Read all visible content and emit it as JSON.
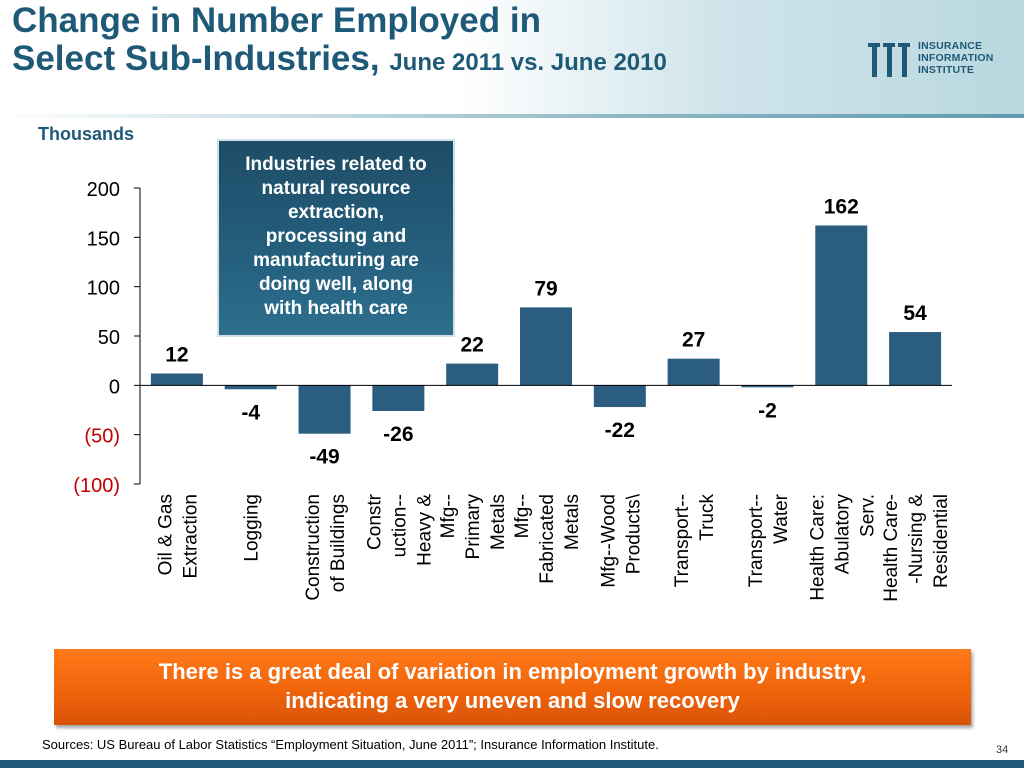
{
  "header": {
    "title_line1": "Change in Number Employed in",
    "title_line2": "Select Sub-Industries,",
    "title_sub": "June 2011 vs. June 2010"
  },
  "logo": {
    "line1": "INSURANCE",
    "line2": "INFORMATION",
    "line3": "INSTITUTE",
    "color": "#1e5a77"
  },
  "units_label": "Thousands",
  "callout": {
    "lines": [
      "Industries related to",
      "natural resource",
      "extraction,",
      "processing and",
      "manufacturing are",
      "doing well, along",
      "with health care"
    ]
  },
  "banner": {
    "line1": "There is a great deal of variation in employment growth by industry,",
    "line2": "indicating a very uneven and slow recovery"
  },
  "source": "Sources: US Bureau of Labor Statistics “Employment Situation, June 2011”; Insurance Information Institute.",
  "page_number": "34",
  "chart_data": {
    "type": "bar",
    "categories": [
      [
        "Oil & Gas",
        "Extraction"
      ],
      [
        "Logging"
      ],
      [
        "Construction",
        "of Buildings"
      ],
      [
        "Constr",
        "uction--",
        "Heavy &"
      ],
      [
        "Mfg--",
        "Primary",
        "Metals"
      ],
      [
        "Mfg--",
        "Fabricated",
        "Metals"
      ],
      [
        "Mfg--Wood",
        "Products\\"
      ],
      [
        "Transport--",
        "Truck"
      ],
      [
        "Transport--",
        "Water"
      ],
      [
        "Health Care:",
        "Abulatory",
        "Serv."
      ],
      [
        "Health Care-",
        "-Nursing &",
        "Residential"
      ]
    ],
    "values": [
      12,
      -4,
      -49,
      -26,
      22,
      79,
      -22,
      27,
      -2,
      162,
      54
    ],
    "data_labels": [
      "12",
      "-4",
      "-49",
      "-26",
      "22",
      "79",
      "-22",
      "27",
      "-2",
      "162",
      "54"
    ],
    "ylim": [
      -100,
      200
    ],
    "yticks": [
      200,
      150,
      100,
      50,
      0,
      -50,
      -100
    ],
    "ytick_labels": [
      "200",
      "150",
      "100",
      "50",
      "0",
      "(50)",
      "(100)"
    ],
    "bar_color": "#2a5d7f",
    "negative_tick_color": "#c00000",
    "xlabel": "",
    "ylabel": "Thousands"
  }
}
